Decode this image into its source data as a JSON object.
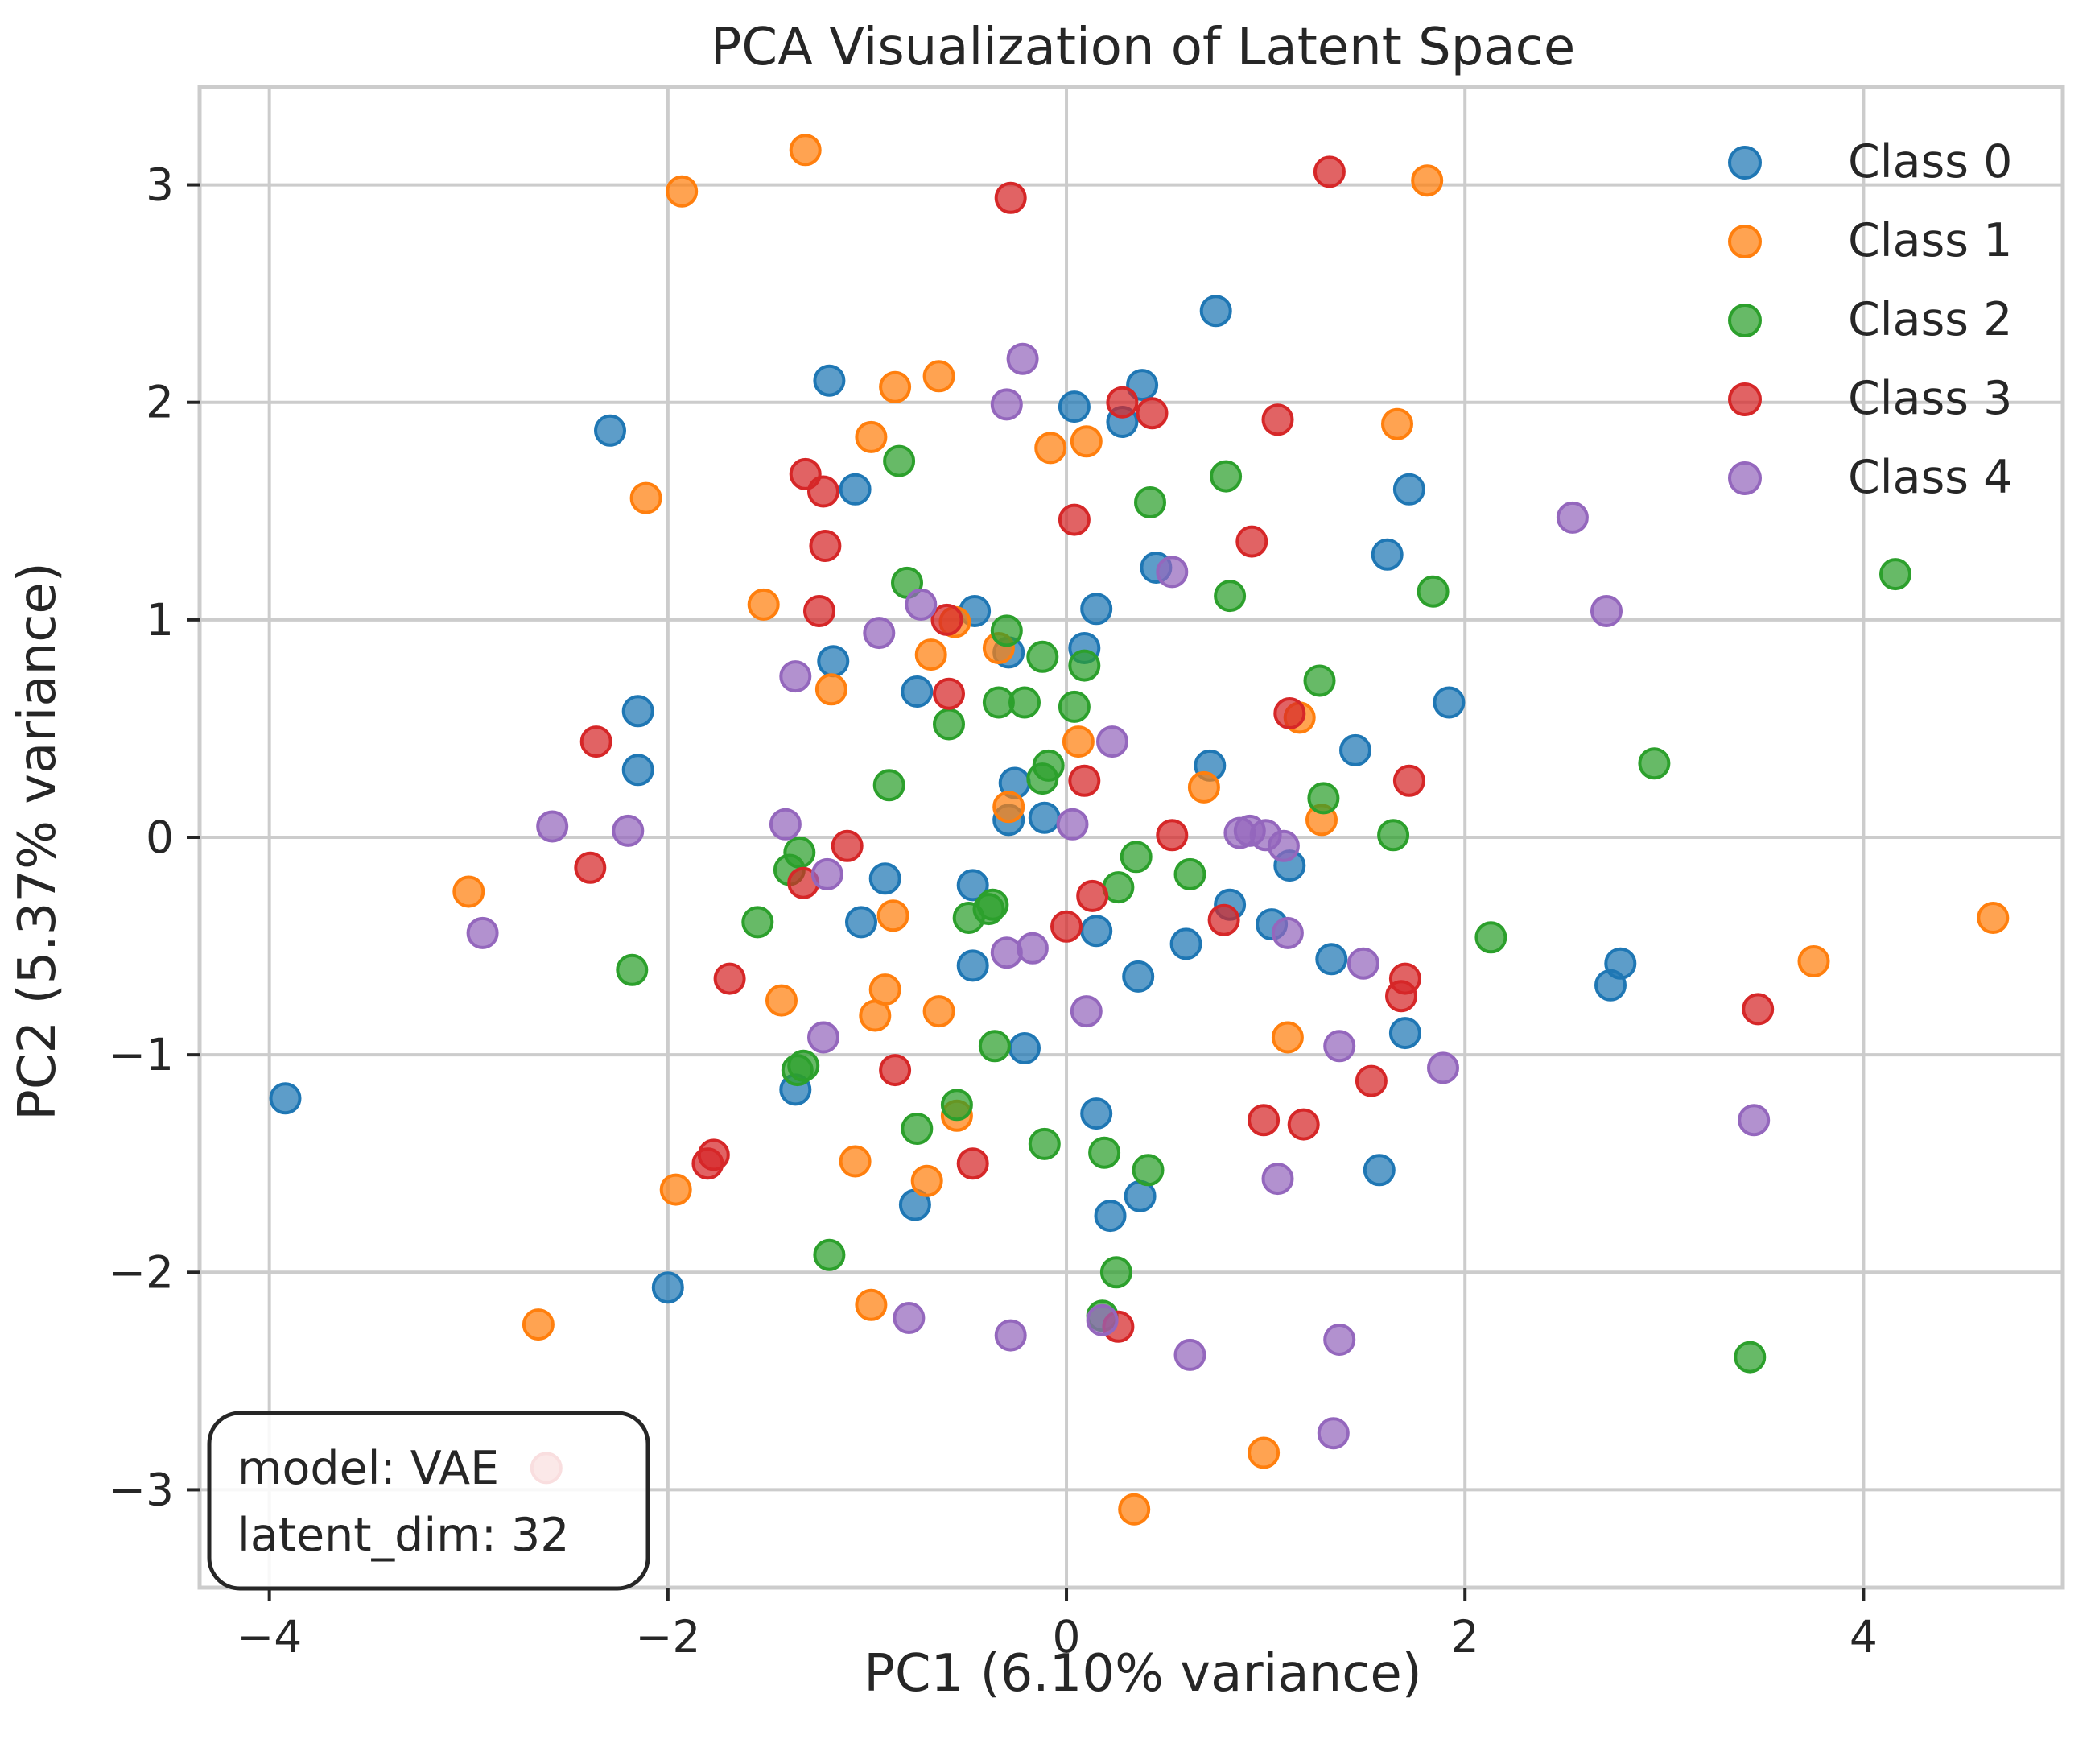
{
  "chart_data": {
    "type": "scatter",
    "title": "PCA Visualization of Latent Space",
    "xlabel": "PC1 (6.10% variance)",
    "ylabel": "PC2 (5.37% variance)",
    "xlim": [
      -4.35,
      5.0
    ],
    "ylim": [
      -3.45,
      3.45
    ],
    "xticks": [
      -4,
      -2,
      0,
      2,
      4
    ],
    "yticks": [
      -3,
      -2,
      -1,
      0,
      1,
      2,
      3
    ],
    "grid": true,
    "legend_position": "top-right",
    "annotation": [
      "model: VAE",
      "latent_dim: 32"
    ],
    "series": [
      {
        "name": "Class 0",
        "color": "#1f77b4",
        "points": [
          [
            0.75,
            2.42
          ],
          [
            -1.19,
            2.1
          ],
          [
            0.38,
            2.08
          ],
          [
            0.04,
            1.98
          ],
          [
            0.28,
            1.91
          ],
          [
            -2.29,
            1.87
          ],
          [
            -1.06,
            1.6
          ],
          [
            1.72,
            1.6
          ],
          [
            1.61,
            1.3
          ],
          [
            0.45,
            1.24
          ],
          [
            -0.46,
            1.04
          ],
          [
            0.15,
            1.05
          ],
          [
            -1.17,
            0.81
          ],
          [
            0.09,
            0.87
          ],
          [
            -0.29,
            0.85
          ],
          [
            -0.75,
            0.67
          ],
          [
            1.92,
            0.62
          ],
          [
            -2.15,
            0.58
          ],
          [
            -2.15,
            0.31
          ],
          [
            1.45,
            0.4
          ],
          [
            0.72,
            0.33
          ],
          [
            -0.26,
            0.25
          ],
          [
            -0.29,
            0.08
          ],
          [
            -0.11,
            0.09
          ],
          [
            -0.91,
            -0.19
          ],
          [
            -0.47,
            -0.22
          ],
          [
            1.12,
            -0.13
          ],
          [
            0.82,
            -0.31
          ],
          [
            -1.03,
            -0.39
          ],
          [
            0.15,
            -0.43
          ],
          [
            0.6,
            -0.49
          ],
          [
            1.03,
            -0.4
          ],
          [
            -0.47,
            -0.59
          ],
          [
            0.36,
            -0.64
          ],
          [
            1.33,
            -0.56
          ],
          [
            2.78,
            -0.58
          ],
          [
            2.73,
            -0.68
          ],
          [
            -0.21,
            -0.97
          ],
          [
            1.7,
            -0.9
          ],
          [
            -1.36,
            -1.16
          ],
          [
            0.15,
            -1.27
          ],
          [
            1.57,
            -1.53
          ],
          [
            -0.76,
            -1.69
          ],
          [
            0.37,
            -1.65
          ],
          [
            0.22,
            -1.74
          ],
          [
            -2.0,
            -2.07
          ],
          [
            -3.92,
            -1.2
          ]
        ]
      },
      {
        "name": "Class 1",
        "color": "#ff7f0e",
        "points": [
          [
            -1.31,
            3.16
          ],
          [
            -1.93,
            2.97
          ],
          [
            1.81,
            3.02
          ],
          [
            -0.86,
            2.07
          ],
          [
            -0.64,
            2.12
          ],
          [
            -0.98,
            1.84
          ],
          [
            -0.08,
            1.79
          ],
          [
            0.1,
            1.82
          ],
          [
            1.66,
            1.9
          ],
          [
            -2.11,
            1.56
          ],
          [
            -1.52,
            1.07
          ],
          [
            -0.68,
            0.84
          ],
          [
            -0.56,
            0.99
          ],
          [
            -0.34,
            0.87
          ],
          [
            -1.18,
            0.68
          ],
          [
            1.17,
            0.55
          ],
          [
            0.06,
            0.44
          ],
          [
            0.69,
            0.23
          ],
          [
            1.28,
            0.08
          ],
          [
            -0.29,
            0.14
          ],
          [
            -3.0,
            -0.25
          ],
          [
            -0.87,
            -0.36
          ],
          [
            -0.91,
            -0.7
          ],
          [
            -1.43,
            -0.75
          ],
          [
            -0.96,
            -0.82
          ],
          [
            -0.64,
            -0.8
          ],
          [
            1.11,
            -0.92
          ],
          [
            -0.55,
            -1.28
          ],
          [
            -1.06,
            -1.49
          ],
          [
            -0.7,
            -1.58
          ],
          [
            -1.96,
            -1.62
          ],
          [
            -0.98,
            -2.15
          ],
          [
            -2.65,
            -2.24
          ],
          [
            0.99,
            -2.83
          ],
          [
            0.34,
            -3.09
          ],
          [
            3.75,
            -0.57
          ],
          [
            4.65,
            -0.37
          ]
        ]
      },
      {
        "name": "Class 2",
        "color": "#2ca02c",
        "points": [
          [
            -0.84,
            1.73
          ],
          [
            0.8,
            1.66
          ],
          [
            0.42,
            1.54
          ],
          [
            -0.8,
            1.17
          ],
          [
            0.82,
            1.11
          ],
          [
            1.84,
            1.13
          ],
          [
            -0.3,
            0.95
          ],
          [
            -0.12,
            0.83
          ],
          [
            0.09,
            0.79
          ],
          [
            1.27,
            0.72
          ],
          [
            -0.34,
            0.62
          ],
          [
            -0.21,
            0.62
          ],
          [
            0.04,
            0.6
          ],
          [
            -0.59,
            0.52
          ],
          [
            -0.09,
            0.33
          ],
          [
            -0.12,
            0.27
          ],
          [
            -0.89,
            0.24
          ],
          [
            1.29,
            0.18
          ],
          [
            2.95,
            0.34
          ],
          [
            4.16,
            1.21
          ],
          [
            1.64,
            0.01
          ],
          [
            -1.34,
            -0.07
          ],
          [
            0.35,
            -0.09
          ],
          [
            -1.39,
            -0.15
          ],
          [
            0.62,
            -0.17
          ],
          [
            -0.37,
            -0.31
          ],
          [
            0.26,
            -0.23
          ],
          [
            -0.39,
            -0.33
          ],
          [
            -0.49,
            -0.37
          ],
          [
            -1.55,
            -0.39
          ],
          [
            2.13,
            -0.46
          ],
          [
            -2.18,
            -0.61
          ],
          [
            -0.36,
            -0.96
          ],
          [
            -1.35,
            -1.07
          ],
          [
            -1.32,
            -1.05
          ],
          [
            -0.75,
            -1.34
          ],
          [
            -0.55,
            -1.23
          ],
          [
            -0.11,
            -1.41
          ],
          [
            0.19,
            -1.45
          ],
          [
            0.41,
            -1.53
          ],
          [
            -1.19,
            -1.92
          ],
          [
            0.25,
            -2.0
          ],
          [
            0.18,
            -2.2
          ],
          [
            3.43,
            -2.39
          ]
        ]
      },
      {
        "name": "Class 3",
        "color": "#d62728",
        "points": [
          [
            -0.28,
            2.94
          ],
          [
            1.32,
            3.06
          ],
          [
            0.28,
            2.0
          ],
          [
            0.43,
            1.95
          ],
          [
            1.06,
            1.92
          ],
          [
            -1.31,
            1.67
          ],
          [
            -1.22,
            1.59
          ],
          [
            0.04,
            1.46
          ],
          [
            0.93,
            1.36
          ],
          [
            -1.21,
            1.34
          ],
          [
            -1.24,
            1.04
          ],
          [
            -0.6,
            1.0
          ],
          [
            -0.59,
            0.66
          ],
          [
            1.12,
            0.57
          ],
          [
            -2.36,
            0.44
          ],
          [
            0.09,
            0.26
          ],
          [
            1.72,
            0.26
          ],
          [
            0.53,
            0.01
          ],
          [
            -1.1,
            -0.04
          ],
          [
            -2.39,
            -0.14
          ],
          [
            -1.32,
            -0.21
          ],
          [
            0.13,
            -0.27
          ],
          [
            0.79,
            -0.38
          ],
          [
            0.0,
            -0.41
          ],
          [
            1.7,
            -0.65
          ],
          [
            1.68,
            -0.73
          ],
          [
            3.47,
            -0.79
          ],
          [
            -1.69,
            -0.65
          ],
          [
            -0.86,
            -1.07
          ],
          [
            1.53,
            -1.12
          ],
          [
            0.99,
            -1.3
          ],
          [
            1.19,
            -1.32
          ],
          [
            -1.77,
            -1.46
          ],
          [
            -1.8,
            -1.5
          ],
          [
            -0.47,
            -1.5
          ],
          [
            0.26,
            -2.25
          ],
          [
            -2.61,
            -2.9
          ]
        ]
      },
      {
        "name": "Class 4",
        "color": "#9467bd",
        "points": [
          [
            -0.22,
            2.2
          ],
          [
            -0.3,
            1.99
          ],
          [
            2.54,
            1.47
          ],
          [
            0.53,
            1.22
          ],
          [
            2.71,
            1.04
          ],
          [
            -0.73,
            1.07
          ],
          [
            -0.94,
            0.94
          ],
          [
            -1.36,
            0.74
          ],
          [
            0.23,
            0.44
          ],
          [
            -1.41,
            0.06
          ],
          [
            -2.58,
            0.05
          ],
          [
            -2.2,
            0.03
          ],
          [
            0.03,
            0.06
          ],
          [
            0.87,
            0.02
          ],
          [
            0.92,
            0.03
          ],
          [
            1.0,
            0.01
          ],
          [
            1.09,
            -0.04
          ],
          [
            -1.2,
            -0.17
          ],
          [
            -2.93,
            -0.44
          ],
          [
            1.11,
            -0.44
          ],
          [
            -0.17,
            -0.51
          ],
          [
            -0.3,
            -0.53
          ],
          [
            1.49,
            -0.58
          ],
          [
            0.1,
            -0.8
          ],
          [
            -1.22,
            -0.92
          ],
          [
            1.37,
            -0.96
          ],
          [
            1.89,
            -1.06
          ],
          [
            3.45,
            -1.3
          ],
          [
            1.06,
            -1.57
          ],
          [
            0.18,
            -2.22
          ],
          [
            -0.79,
            -2.21
          ],
          [
            -0.28,
            -2.29
          ],
          [
            0.62,
            -2.38
          ],
          [
            1.37,
            -2.31
          ],
          [
            1.34,
            -2.74
          ]
        ]
      }
    ]
  }
}
